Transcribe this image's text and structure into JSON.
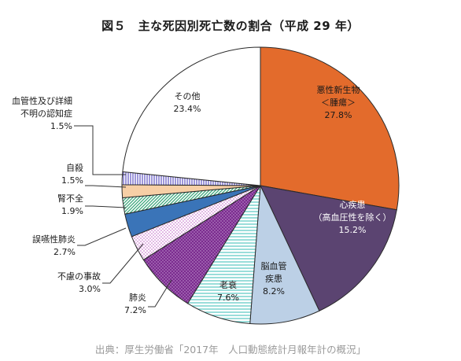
{
  "chart_data": {
    "type": "pie",
    "title": "図５　主な死因別死亡数の割合（平成 29 年）",
    "slices": [
      {
        "lines": [
          "悪性新生物",
          "＜腫瘍＞"
        ],
        "value_label": "27.8%",
        "value": 27.8,
        "color": "#e36b2c",
        "fill": "solid",
        "text_color": "#1a1a1a"
      },
      {
        "lines": [
          "心疾患",
          "（高血圧性を除く）"
        ],
        "value_label": "15.2%",
        "value": 15.2,
        "color": "#5b4471",
        "fill": "solid",
        "text_color": "#ffffff"
      },
      {
        "lines": [
          "脳血管",
          "疾患"
        ],
        "value_label": "8.2%",
        "value": 8.2,
        "color": "#bcd0e6",
        "fill": "solid",
        "text_color": "#1a1a1a"
      },
      {
        "lines": [
          "老衰"
        ],
        "value_label": "7.6%",
        "value": 7.6,
        "color": "#7fd6d2",
        "fill": "hlines",
        "text_color": "#1a1a1a"
      },
      {
        "lines": [
          "肺炎"
        ],
        "value_label": "7.2%",
        "value": 7.2,
        "color": "#7b2b8f",
        "fill": "dots",
        "text_color": "#1a1a1a"
      },
      {
        "lines": [
          "不慮の事故"
        ],
        "value_label": "3.0%",
        "value": 3.0,
        "color": "#c066c6",
        "fill": "dots",
        "text_color": "#1a1a1a"
      },
      {
        "lines": [
          "誤嚥性肺炎"
        ],
        "value_label": "2.7%",
        "value": 2.7,
        "color": "#3a74b8",
        "fill": "solid",
        "text_color": "#1a1a1a"
      },
      {
        "lines": [
          "腎不全"
        ],
        "value_label": "1.9%",
        "value": 1.9,
        "color": "#3aa57a",
        "fill": "diag",
        "text_color": "#1a1a1a"
      },
      {
        "lines": [
          "自殺"
        ],
        "value_label": "1.5%",
        "value": 1.5,
        "color": "#f7cfa6",
        "fill": "solid",
        "text_color": "#1a1a1a"
      },
      {
        "lines": [
          "血管性及び詳細",
          "不明の認知症"
        ],
        "value_label": "1.5%",
        "value": 1.5,
        "color": "#6a5fc7",
        "fill": "vlines",
        "text_color": "#1a1a1a"
      },
      {
        "lines": [
          "その他"
        ],
        "value_label": "23.4%",
        "value": 23.4,
        "color": "#ffffff",
        "fill": "solid",
        "text_color": "#1a1a1a"
      }
    ]
  },
  "source_note": "出典：厚生労働省「2017年　人口動態統計月報年計の概況」"
}
